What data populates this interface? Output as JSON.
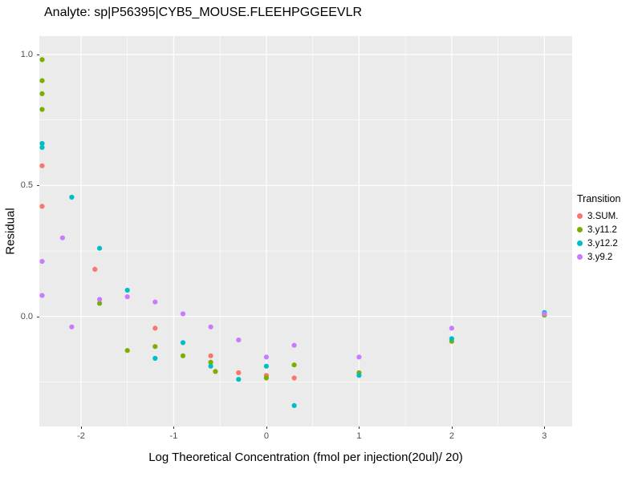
{
  "chart_data": {
    "type": "scatter",
    "title": "Analyte: sp|P56395|CYB5_MOUSE.FLEEHPGGEEVLR",
    "xlabel": "Log Theoretical Concentration (fmol per injection(20ul)/ 20)",
    "ylabel": "Residual",
    "legend_title": "Transition",
    "legend_position": "right",
    "grid": true,
    "panel_bg": "#EBEBEB",
    "grid_color": "#FFFFFF",
    "tick_label_color": "#4D4D4D",
    "xlim": [
      -2.45,
      3.3
    ],
    "ylim": [
      -0.42,
      1.07
    ],
    "x_ticks": [
      -2,
      -1,
      0,
      1,
      2,
      3
    ],
    "x_tick_labels": [
      "-2",
      "-1",
      "0",
      "1",
      "2",
      "3"
    ],
    "y_ticks": [
      0,
      0.5,
      1
    ],
    "y_tick_labels": [
      "0.0",
      "0.5",
      "1.0"
    ],
    "series": [
      {
        "name": "3.SUM.",
        "color": "#F8766D",
        "points": [
          [
            -2.42,
            0.575
          ],
          [
            -2.42,
            0.42
          ],
          [
            -1.85,
            0.18
          ],
          [
            -1.2,
            -0.045
          ],
          [
            -0.6,
            -0.15
          ],
          [
            -0.3,
            -0.215
          ],
          [
            0,
            -0.225
          ],
          [
            0.3,
            -0.235
          ],
          [
            3,
            0.01
          ]
        ]
      },
      {
        "name": "3.y11.2",
        "color": "#7CAE00",
        "points": [
          [
            -2.42,
            0.98
          ],
          [
            -2.42,
            0.9
          ],
          [
            -2.42,
            0.85
          ],
          [
            -2.42,
            0.79
          ],
          [
            -1.8,
            0.05
          ],
          [
            -1.5,
            -0.13
          ],
          [
            -1.2,
            -0.115
          ],
          [
            -0.9,
            -0.15
          ],
          [
            -0.6,
            -0.175
          ],
          [
            -0.55,
            -0.21
          ],
          [
            0,
            -0.235
          ],
          [
            0.3,
            -0.185
          ],
          [
            1,
            -0.215
          ],
          [
            2,
            -0.095
          ],
          [
            3,
            0.005
          ]
        ]
      },
      {
        "name": "3.y12.2",
        "color": "#00BFC4",
        "points": [
          [
            -2.42,
            0.66
          ],
          [
            -2.42,
            0.645
          ],
          [
            -2.1,
            0.455
          ],
          [
            -1.8,
            0.26
          ],
          [
            -1.5,
            0.1
          ],
          [
            -1.2,
            -0.16
          ],
          [
            -0.9,
            -0.1
          ],
          [
            -0.6,
            -0.19
          ],
          [
            -0.3,
            -0.24
          ],
          [
            0,
            -0.19
          ],
          [
            0.3,
            -0.34
          ],
          [
            1,
            -0.225
          ],
          [
            2,
            -0.085
          ],
          [
            3,
            0.015
          ]
        ]
      },
      {
        "name": "3.y9.2",
        "color": "#C77CFF",
        "points": [
          [
            -2.42,
            0.21
          ],
          [
            -2.42,
            0.08
          ],
          [
            -2.2,
            0.3
          ],
          [
            -2.1,
            -0.04
          ],
          [
            -1.8,
            0.065
          ],
          [
            -1.5,
            0.075
          ],
          [
            -1.2,
            0.055
          ],
          [
            -0.9,
            0.01
          ],
          [
            -0.6,
            -0.04
          ],
          [
            -0.3,
            -0.09
          ],
          [
            0,
            -0.155
          ],
          [
            0.3,
            -0.11
          ],
          [
            1,
            -0.155
          ],
          [
            2,
            -0.045
          ],
          [
            3,
            0.01
          ]
        ]
      }
    ]
  }
}
